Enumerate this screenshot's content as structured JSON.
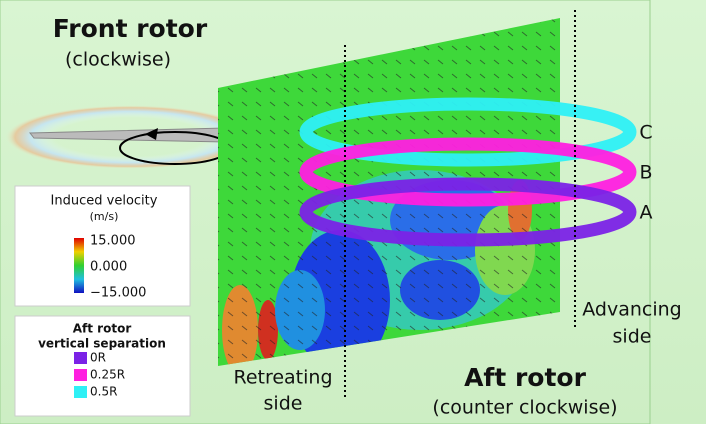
{
  "front_rotor": {
    "title": "Front rotor",
    "direction": "(clockwise)"
  },
  "aft_rotor": {
    "title": "Aft rotor",
    "direction": "(counter clockwise)"
  },
  "retreating_side": [
    "Retreating",
    "side"
  ],
  "advancing_side": [
    "Advancing",
    "side"
  ],
  "ring_labels": [
    "A",
    "B",
    "C"
  ],
  "colorbar": {
    "title": [
      "Induced velocity",
      "(m/s)"
    ],
    "ticks": [
      "15.000",
      "0.000",
      "−15.000"
    ]
  },
  "separation_legend": {
    "title": [
      "Aft rotor",
      "vertical separation"
    ],
    "items": [
      {
        "label": "0R",
        "color": "#7b22e6"
      },
      {
        "label": "0.25R",
        "color": "#ff1fe0"
      },
      {
        "label": "0.5R",
        "color": "#2ef0f5"
      }
    ]
  }
}
